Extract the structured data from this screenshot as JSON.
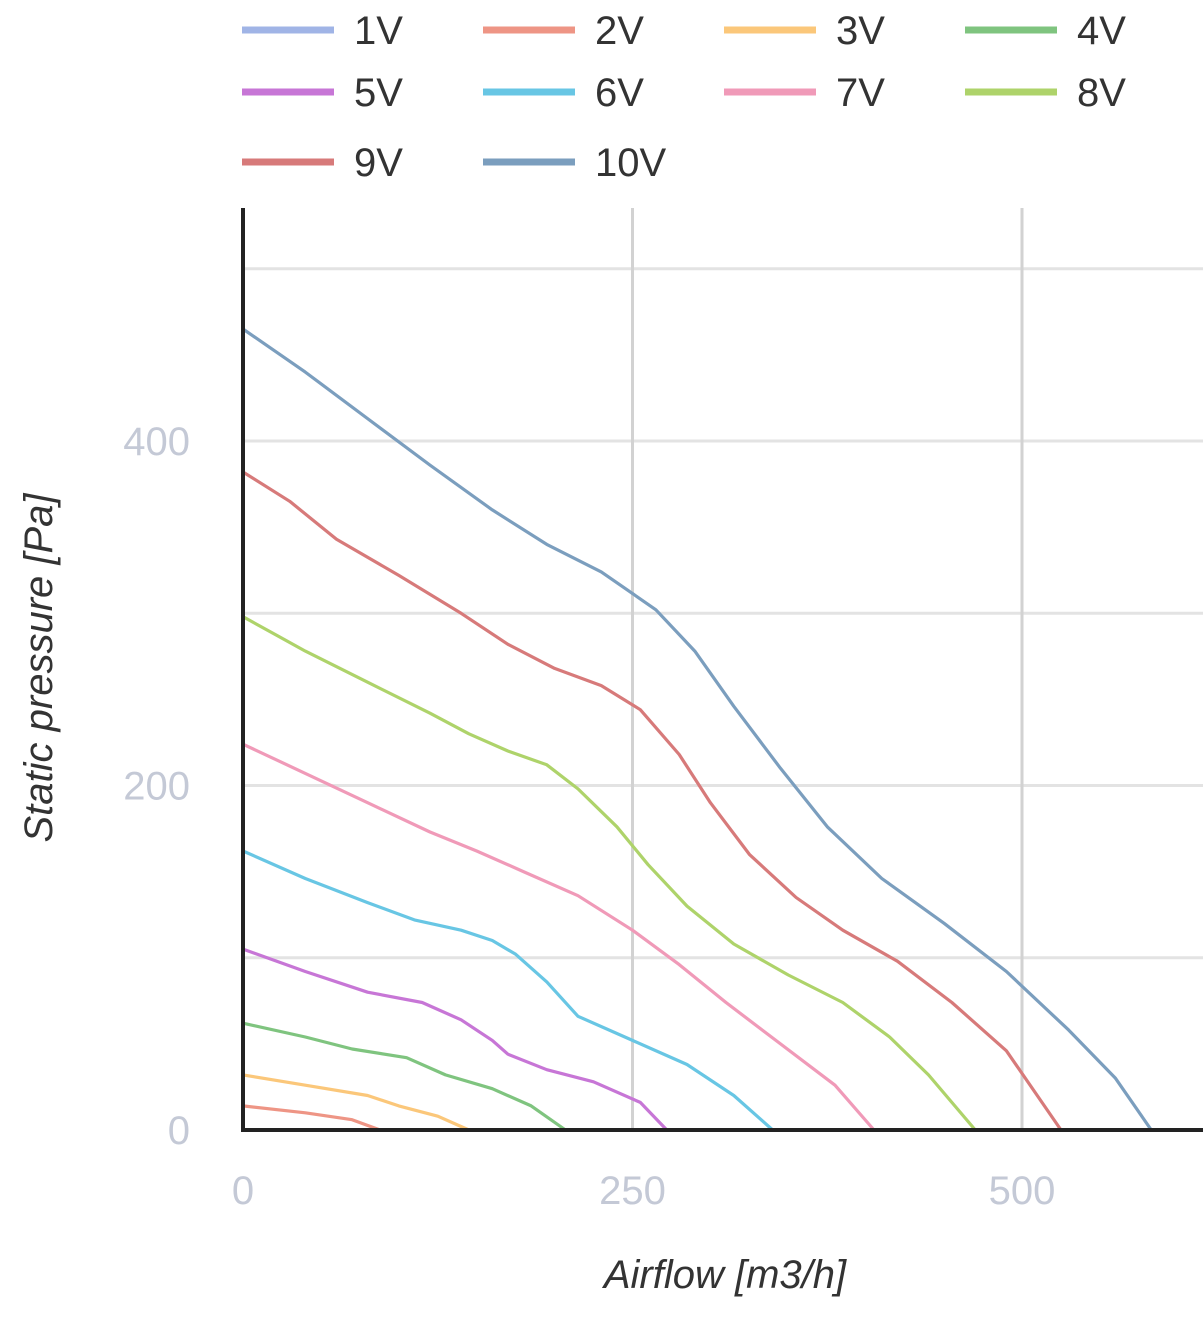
{
  "chart_data": {
    "type": "line",
    "xlabel": "Airflow [m3/h]",
    "ylabel": "Static pressure [Pa]",
    "xlim": [
      0,
      620
    ],
    "ylim": [
      0,
      530
    ],
    "x_ticks": [
      "0",
      "250",
      "500"
    ],
    "y_ticks": [
      "0",
      "200",
      "400"
    ],
    "grid": true,
    "legend": "top",
    "series": [
      {
        "name": "1V",
        "color": "#a0b4e6",
        "points": []
      },
      {
        "name": "2V",
        "color": "#ee9585",
        "points": [
          [
            0,
            14
          ],
          [
            40,
            10
          ],
          [
            70,
            6
          ],
          [
            88,
            0
          ]
        ]
      },
      {
        "name": "3V",
        "color": "#fbc77a",
        "points": [
          [
            0,
            32
          ],
          [
            40,
            26
          ],
          [
            80,
            20
          ],
          [
            100,
            14
          ],
          [
            125,
            8
          ],
          [
            145,
            0
          ]
        ]
      },
      {
        "name": "4V",
        "color": "#7fc47f",
        "points": [
          [
            0,
            62
          ],
          [
            40,
            54
          ],
          [
            70,
            47
          ],
          [
            105,
            42
          ],
          [
            130,
            32
          ],
          [
            160,
            24
          ],
          [
            185,
            14
          ],
          [
            207,
            0
          ]
        ]
      },
      {
        "name": "5V",
        "color": "#c776d6",
        "points": [
          [
            0,
            105
          ],
          [
            40,
            92
          ],
          [
            80,
            80
          ],
          [
            115,
            74
          ],
          [
            140,
            64
          ],
          [
            160,
            52
          ],
          [
            170,
            44
          ],
          [
            195,
            35
          ],
          [
            225,
            28
          ],
          [
            255,
            16
          ],
          [
            272,
            0
          ]
        ]
      },
      {
        "name": "6V",
        "color": "#68c6e4",
        "points": [
          [
            0,
            162
          ],
          [
            40,
            146
          ],
          [
            80,
            132
          ],
          [
            110,
            122
          ],
          [
            140,
            116
          ],
          [
            160,
            110
          ],
          [
            175,
            102
          ],
          [
            195,
            86
          ],
          [
            215,
            66
          ],
          [
            250,
            52
          ],
          [
            285,
            38
          ],
          [
            315,
            20
          ],
          [
            340,
            0
          ]
        ]
      },
      {
        "name": "7V",
        "color": "#f09ab8",
        "points": [
          [
            0,
            224
          ],
          [
            40,
            207
          ],
          [
            80,
            190
          ],
          [
            120,
            173
          ],
          [
            150,
            162
          ],
          [
            180,
            150
          ],
          [
            215,
            136
          ],
          [
            250,
            116
          ],
          [
            280,
            96
          ],
          [
            310,
            74
          ],
          [
            345,
            50
          ],
          [
            380,
            26
          ],
          [
            405,
            0
          ]
        ]
      },
      {
        "name": "8V",
        "color": "#aed36a",
        "points": [
          [
            0,
            298
          ],
          [
            40,
            278
          ],
          [
            80,
            260
          ],
          [
            120,
            242
          ],
          [
            145,
            230
          ],
          [
            170,
            220
          ],
          [
            195,
            212
          ],
          [
            215,
            198
          ],
          [
            240,
            176
          ],
          [
            260,
            154
          ],
          [
            285,
            130
          ],
          [
            315,
            108
          ],
          [
            350,
            90
          ],
          [
            385,
            74
          ],
          [
            415,
            54
          ],
          [
            440,
            32
          ],
          [
            470,
            0
          ]
        ]
      },
      {
        "name": "9V",
        "color": "#d77a7a",
        "points": [
          [
            0,
            382
          ],
          [
            30,
            365
          ],
          [
            60,
            343
          ],
          [
            100,
            322
          ],
          [
            140,
            300
          ],
          [
            170,
            282
          ],
          [
            200,
            268
          ],
          [
            230,
            258
          ],
          [
            255,
            244
          ],
          [
            280,
            218
          ],
          [
            300,
            190
          ],
          [
            325,
            160
          ],
          [
            355,
            135
          ],
          [
            385,
            116
          ],
          [
            420,
            98
          ],
          [
            455,
            74
          ],
          [
            490,
            46
          ],
          [
            525,
            0
          ]
        ]
      },
      {
        "name": "10V",
        "color": "#7b9ebe",
        "points": [
          [
            0,
            465
          ],
          [
            40,
            440
          ],
          [
            80,
            413
          ],
          [
            120,
            386
          ],
          [
            160,
            360
          ],
          [
            195,
            340
          ],
          [
            230,
            324
          ],
          [
            265,
            302
          ],
          [
            290,
            278
          ],
          [
            315,
            246
          ],
          [
            345,
            210
          ],
          [
            375,
            176
          ],
          [
            410,
            146
          ],
          [
            450,
            120
          ],
          [
            490,
            92
          ],
          [
            530,
            58
          ],
          [
            560,
            30
          ],
          [
            583,
            0
          ]
        ]
      }
    ]
  }
}
